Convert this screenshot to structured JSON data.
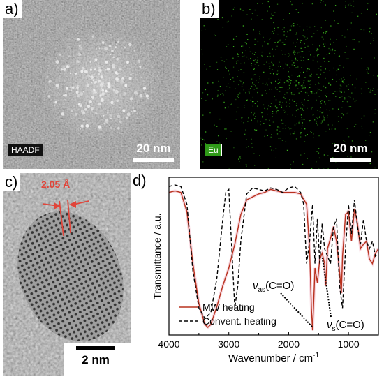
{
  "panel_a": {
    "letter": "a)",
    "chip_label": "HAADF",
    "scale_bar": "20 nm"
  },
  "panel_b": {
    "letter": "b)",
    "chip_label": "Eu",
    "scale_bar": "20 nm",
    "map_color": "#3dbb1f"
  },
  "panel_c": {
    "letter": "c)",
    "d_spacing": "2.05 Å",
    "scale_bar": "2 nm",
    "annotation_color": "#e0453a"
  },
  "panel_d": {
    "letter": "d)",
    "annotations": {
      "vas_label": "ν",
      "vas_sub": "as",
      "vas_rest": "(C=O)",
      "vs_label": "ν",
      "vs_sub": "s",
      "vs_rest": "(C=O)"
    }
  },
  "chart_data": {
    "type": "line",
    "title": "",
    "xlabel": "Wavenumber / cm",
    "xlabel_sup": "-1",
    "ylabel": "Transmittance / a.u.",
    "xlim": [
      4000,
      500
    ],
    "x_ticks": [
      4000,
      3000,
      2000,
      1000
    ],
    "legend_position": "lower-right",
    "series": [
      {
        "name": "MW heating",
        "color": "#b8321e",
        "style": "solid",
        "x": [
          4000,
          3900,
          3800,
          3700,
          3600,
          3500,
          3400,
          3350,
          3300,
          3200,
          3100,
          3000,
          2950,
          2900,
          2800,
          2700,
          2600,
          2500,
          2400,
          2300,
          2200,
          2100,
          2000,
          1900,
          1800,
          1700,
          1650,
          1620,
          1600,
          1580,
          1560,
          1520,
          1480,
          1440,
          1400,
          1380,
          1350,
          1300,
          1250,
          1200,
          1150,
          1120,
          1100,
          1050,
          1000,
          950,
          900,
          850,
          800,
          750,
          700,
          650,
          600,
          550,
          500
        ],
        "y": [
          0.93,
          0.94,
          0.93,
          0.8,
          0.45,
          0.18,
          0.04,
          0.02,
          0.04,
          0.16,
          0.3,
          0.42,
          0.5,
          0.58,
          0.78,
          0.88,
          0.9,
          0.92,
          0.93,
          0.95,
          0.94,
          0.93,
          0.93,
          0.93,
          0.92,
          0.85,
          0.55,
          0.15,
          0.0,
          0.2,
          0.42,
          0.32,
          0.48,
          0.52,
          0.45,
          0.3,
          0.55,
          0.62,
          0.7,
          0.6,
          0.4,
          0.25,
          0.5,
          0.78,
          0.8,
          0.6,
          0.82,
          0.72,
          0.55,
          0.58,
          0.6,
          0.48,
          0.45,
          0.52,
          0.55
        ]
      },
      {
        "name": "Convent. heating",
        "color": "#000000",
        "style": "dashed",
        "x": [
          4000,
          3900,
          3800,
          3700,
          3600,
          3500,
          3400,
          3300,
          3200,
          3100,
          3050,
          3000,
          2950,
          2900,
          2850,
          2800,
          2700,
          2600,
          2500,
          2400,
          2300,
          2200,
          2100,
          2000,
          1900,
          1800,
          1750,
          1700,
          1650,
          1600,
          1560,
          1520,
          1480,
          1440,
          1400,
          1350,
          1300,
          1250,
          1200,
          1150,
          1100,
          1050,
          1000,
          950,
          900,
          850,
          800,
          750,
          700,
          650,
          600,
          550,
          500
        ],
        "y": [
          0.97,
          0.98,
          0.97,
          0.85,
          0.4,
          0.15,
          0.08,
          0.12,
          0.35,
          0.75,
          0.93,
          0.95,
          0.55,
          0.15,
          0.3,
          0.6,
          0.92,
          0.96,
          0.95,
          0.94,
          0.96,
          0.95,
          0.93,
          0.96,
          0.97,
          0.93,
          0.85,
          0.45,
          0.6,
          0.85,
          0.45,
          0.75,
          0.45,
          0.72,
          0.55,
          0.5,
          0.45,
          0.7,
          0.75,
          0.3,
          0.15,
          0.55,
          0.85,
          0.65,
          0.88,
          0.7,
          0.58,
          0.75,
          0.6,
          0.55,
          0.6,
          0.5,
          0.52
        ]
      }
    ]
  }
}
